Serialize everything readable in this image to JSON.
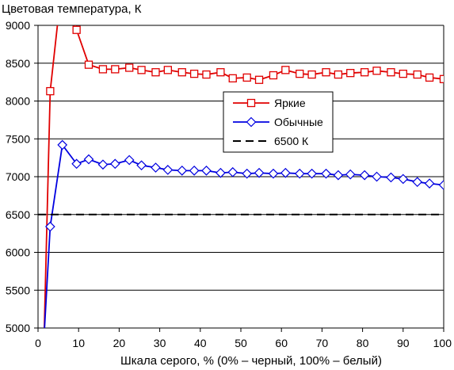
{
  "chart_data": {
    "type": "line",
    "title": "",
    "xlabel": "Шкала серого, % (0% – черный, 100% – белый)",
    "ylabel": "Цветовая температура, К",
    "xlim": [
      0,
      100
    ],
    "ylim": [
      5000,
      9000
    ],
    "x_ticks": [
      0,
      10,
      20,
      30,
      40,
      50,
      60,
      70,
      80,
      90,
      100
    ],
    "y_ticks": [
      5000,
      5500,
      6000,
      6500,
      7000,
      7500,
      8000,
      8500,
      9000
    ],
    "grid": "horizontal",
    "legend_position": "center-right",
    "series": [
      {
        "name": "Яркие",
        "color": "#e00000",
        "marker": "square",
        "x": [
          1.5,
          3,
          6,
          9.5,
          12.5,
          16,
          19,
          22.5,
          25.5,
          29,
          32,
          35.5,
          38.5,
          41.5,
          45,
          48,
          51.5,
          54.5,
          58,
          61,
          64.5,
          67.5,
          71,
          74,
          77,
          80.5,
          83.5,
          87,
          90,
          93.5,
          96.5,
          100
        ],
        "y": [
          4900,
          8130,
          9600,
          8940,
          8480,
          8420,
          8420,
          8440,
          8410,
          8380,
          8410,
          8380,
          8360,
          8350,
          8380,
          8300,
          8310,
          8280,
          8340,
          8410,
          8360,
          8350,
          8380,
          8350,
          8370,
          8380,
          8400,
          8380,
          8360,
          8350,
          8310,
          8290
        ]
      },
      {
        "name": "Обычные",
        "color": "#0000e0",
        "marker": "diamond",
        "x": [
          1.5,
          3,
          6,
          9.5,
          12.5,
          16,
          19,
          22.5,
          25.5,
          29,
          32,
          35.5,
          38.5,
          41.5,
          45,
          48,
          51.5,
          54.5,
          58,
          61,
          64.5,
          67.5,
          71,
          74,
          77,
          80.5,
          83.5,
          87,
          90,
          93.5,
          96.5,
          100
        ],
        "y": [
          4900,
          6340,
          7420,
          7170,
          7230,
          7160,
          7170,
          7220,
          7150,
          7120,
          7090,
          7080,
          7080,
          7080,
          7050,
          7060,
          7040,
          7050,
          7040,
          7050,
          7040,
          7040,
          7040,
          7020,
          7030,
          7020,
          7000,
          6990,
          6970,
          6930,
          6910,
          6890
        ]
      },
      {
        "name": "6500 К",
        "color": "#000000",
        "marker": "none",
        "dashed": true,
        "x": [
          0,
          100
        ],
        "y": [
          6500,
          6500
        ]
      }
    ]
  }
}
